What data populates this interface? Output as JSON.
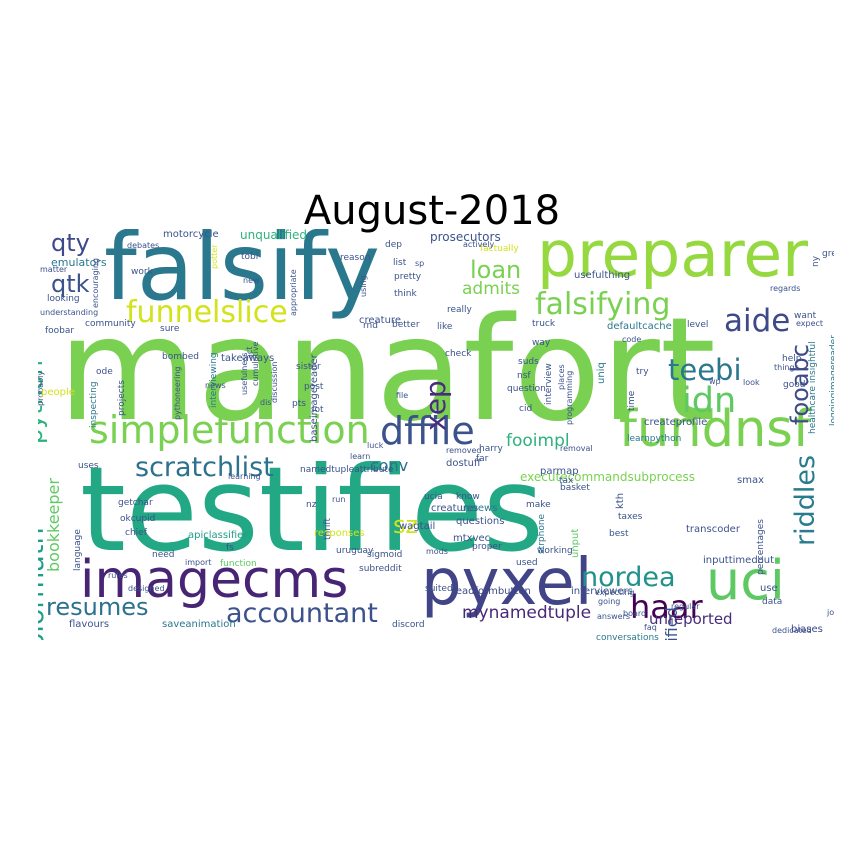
{
  "title": "August-2018",
  "colors": {
    "background": "#ffffff",
    "title": "#000000"
  },
  "words": [
    {
      "text": "manafort",
      "color": "#7ad151"
    },
    {
      "text": "testifies",
      "color": "#22a884"
    },
    {
      "text": "falsify",
      "color": "#2a788e"
    },
    {
      "text": "preparer",
      "color": "#95d840"
    },
    {
      "text": "imagecms",
      "color": "#482475"
    },
    {
      "text": "pyxel",
      "color": "#414487"
    },
    {
      "text": "uci",
      "color": "#5ec962"
    },
    {
      "text": "fundnsf",
      "color": "#7ad151"
    },
    {
      "text": "simplefunction",
      "color": "#7ad151"
    },
    {
      "text": "dffile",
      "color": "#3b528b"
    },
    {
      "text": "funnelslice",
      "color": "#d2e21b"
    },
    {
      "text": "falsifying",
      "color": "#7ad151"
    },
    {
      "text": "scratchlist",
      "color": "#2c728e"
    },
    {
      "text": "accountant",
      "color": "#3b528b"
    },
    {
      "text": "nordea",
      "color": "#21918c"
    },
    {
      "text": "idn",
      "color": "#5ec962"
    },
    {
      "text": "aide",
      "color": "#3e4989"
    },
    {
      "text": "haar",
      "color": "#440154"
    },
    {
      "text": "riddles",
      "color": "#287c8e"
    },
    {
      "text": "colormath",
      "color": "#1f9e89"
    },
    {
      "text": "resumes",
      "color": "#2c728e"
    },
    {
      "text": "teebi",
      "color": "#2a788e"
    },
    {
      "text": "xep",
      "color": "#472d7b"
    },
    {
      "text": "python",
      "color": "#2db27d"
    },
    {
      "text": "qtk",
      "color": "#3b528b"
    },
    {
      "text": "qty",
      "color": "#3e4989"
    },
    {
      "text": "loan",
      "color": "#7ad151"
    },
    {
      "text": "fooabc",
      "color": "#3e4989"
    },
    {
      "text": "sz",
      "color": "#d2e21b"
    },
    {
      "text": "mynamedtuple",
      "color": "#482878"
    },
    {
      "text": "bookkeeper",
      "color": "#5ec962"
    },
    {
      "text": "admits",
      "color": "#7ad151"
    },
    {
      "text": "conv",
      "color": "#2c728e"
    },
    {
      "text": "fooimpl",
      "color": "#2db27d"
    },
    {
      "text": "falsified",
      "color": "#3b528b"
    },
    {
      "text": "unreported",
      "color": "#472d7b"
    },
    {
      "text": "unqualified",
      "color": "#2db27d"
    },
    {
      "text": "prosecutors",
      "color": "#3b528b"
    },
    {
      "text": "motorcycle",
      "color": "#3b528b"
    },
    {
      "text": "emulators",
      "color": "#2a788e"
    },
    {
      "text": "flavours",
      "color": "#3b528b"
    },
    {
      "text": "saveanimation",
      "color": "#2a788e"
    },
    {
      "text": "apiclassifier",
      "color": "#1f9e89"
    },
    {
      "text": "transcoder",
      "color": "#3b528b"
    },
    {
      "text": "executecommandsubprocess",
      "color": "#7ad151"
    },
    {
      "text": "readformbutton",
      "color": "#3e4989"
    },
    {
      "text": "interviewers",
      "color": "#3b528b"
    },
    {
      "text": "inputtimedout",
      "color": "#3b528b"
    },
    {
      "text": "conversations",
      "color": "#2a788e"
    },
    {
      "text": "biases",
      "color": "#3e4989"
    },
    {
      "text": "defaultcache",
      "color": "#2a788e"
    },
    {
      "text": "createprofile",
      "color": "#3b528b"
    },
    {
      "text": "learnpython",
      "color": "#2a788e"
    },
    {
      "text": "usefulthing",
      "color": "#3b528b"
    },
    {
      "text": "uniq",
      "color": "#2a788e"
    },
    {
      "text": "creature",
      "color": "#3b528b"
    },
    {
      "text": "creatures",
      "color": "#3b528b"
    },
    {
      "text": "takeaways",
      "color": "#3b528b"
    },
    {
      "text": "baseimagereader",
      "color": "#3b528b"
    },
    {
      "text": "interviewing",
      "color": "#2a788e"
    },
    {
      "text": "inspecting",
      "color": "#2a788e"
    },
    {
      "text": "projects",
      "color": "#3b528b"
    },
    {
      "text": "namedtupleattribute",
      "color": "#3b528b"
    },
    {
      "text": "dostuff",
      "color": "#3b528b"
    },
    {
      "text": "parmap",
      "color": "#3b528b"
    },
    {
      "text": "wagtail",
      "color": "#3b528b"
    },
    {
      "text": "mtxvec",
      "color": "#3b528b"
    },
    {
      "text": "usnews",
      "color": "#2a788e"
    },
    {
      "text": "questions",
      "color": "#3b528b"
    },
    {
      "text": "strphone",
      "color": "#2a788e"
    },
    {
      "text": "unput",
      "color": "#5ec962"
    },
    {
      "text": "sigmoid",
      "color": "#3b528b"
    },
    {
      "text": "subreddit",
      "color": "#3b528b"
    },
    {
      "text": "discord",
      "color": "#3b528b"
    },
    {
      "text": "uruguay",
      "color": "#3b528b"
    },
    {
      "text": "responses",
      "color": "#d2e21b"
    },
    {
      "text": "function",
      "color": "#5ec962"
    },
    {
      "text": "getchar",
      "color": "#3b528b"
    },
    {
      "text": "okcupid",
      "color": "#3b528b"
    },
    {
      "text": "chief",
      "color": "#3b528b"
    },
    {
      "text": "language",
      "color": "#3b528b"
    },
    {
      "text": "smax",
      "color": "#3b528b"
    },
    {
      "text": "percentages",
      "color": "#3b528b"
    },
    {
      "text": "loggingimagereader",
      "color": "#2a788e"
    },
    {
      "text": "healthcare insightful",
      "color": "#2a788e"
    },
    {
      "text": "sister",
      "color": "#3b528b"
    },
    {
      "text": "post",
      "color": "#3b528b"
    },
    {
      "text": "pts",
      "color": "#3b528b"
    },
    {
      "text": "lot",
      "color": "#3b528b"
    },
    {
      "text": "cid",
      "color": "#3b528b"
    },
    {
      "text": "question",
      "color": "#3b528b"
    },
    {
      "text": "nsf",
      "color": "#3b528b"
    },
    {
      "text": "suds",
      "color": "#3b528b"
    },
    {
      "text": "check",
      "color": "#3b528b"
    },
    {
      "text": "truck",
      "color": "#3b528b"
    },
    {
      "text": "like",
      "color": "#3b528b"
    },
    {
      "text": "rnd",
      "color": "#3b528b"
    },
    {
      "text": "better",
      "color": "#3b528b"
    },
    {
      "text": "really",
      "color": "#3b528b"
    },
    {
      "text": "way",
      "color": "#3b528b"
    },
    {
      "text": "think",
      "color": "#3b528b"
    },
    {
      "text": "pretty",
      "color": "#3b528b"
    },
    {
      "text": "list",
      "color": "#3b528b"
    },
    {
      "text": "reason",
      "color": "#3b528b"
    },
    {
      "text": "dep",
      "color": "#3b528b"
    },
    {
      "text": "factually",
      "color": "#d2e21b"
    },
    {
      "text": "actively",
      "color": "#3b528b"
    },
    {
      "text": "potter",
      "color": "#d2e21b"
    },
    {
      "text": "tobi",
      "color": "#3b528b"
    },
    {
      "text": "work",
      "color": "#3b528b"
    },
    {
      "text": "debates",
      "color": "#3b528b"
    },
    {
      "text": "matter",
      "color": "#3b528b"
    },
    {
      "text": "looking",
      "color": "#3b528b"
    },
    {
      "text": "understanding",
      "color": "#3b528b"
    },
    {
      "text": "community",
      "color": "#3b528b"
    },
    {
      "text": "sure",
      "color": "#3b528b"
    },
    {
      "text": "encouraging",
      "color": "#3b528b"
    },
    {
      "text": "foobar",
      "color": "#3b528b"
    },
    {
      "text": "ode",
      "color": "#3b528b"
    },
    {
      "text": "probably",
      "color": "#3b528b"
    },
    {
      "text": "people",
      "color": "#d2e21b"
    },
    {
      "text": "news",
      "color": "#3b528b"
    },
    {
      "text": "bombed",
      "color": "#3b528b"
    },
    {
      "text": "pythoneering",
      "color": "#3b528b"
    },
    {
      "text": "discussion",
      "color": "#3b528b"
    },
    {
      "text": "usefulness",
      "color": "#3b528b"
    },
    {
      "text": "cumulative",
      "color": "#3b528b"
    },
    {
      "text": "appropriate",
      "color": "#3b528b"
    },
    {
      "text": "new",
      "color": "#3b528b"
    },
    {
      "text": "act",
      "color": "#3b528b"
    },
    {
      "text": "using",
      "color": "#3b528b"
    },
    {
      "text": "sp",
      "color": "#3b528b"
    },
    {
      "text": "level",
      "color": "#3b528b"
    },
    {
      "text": "code",
      "color": "#3b528b"
    },
    {
      "text": "help",
      "color": "#3b528b"
    },
    {
      "text": "try",
      "color": "#3b528b"
    },
    {
      "text": "good",
      "color": "#3b528b"
    },
    {
      "text": "look",
      "color": "#3b528b"
    },
    {
      "text": "want",
      "color": "#3b528b"
    },
    {
      "text": "expect",
      "color": "#3b528b"
    },
    {
      "text": "great",
      "color": "#3b528b"
    },
    {
      "text": "regards",
      "color": "#3b528b"
    },
    {
      "text": "ny",
      "color": "#3b528b"
    },
    {
      "text": "time",
      "color": "#3b528b"
    },
    {
      "text": "programming",
      "color": "#3b528b"
    },
    {
      "text": "places",
      "color": "#3b528b"
    },
    {
      "text": "interview",
      "color": "#3b528b"
    },
    {
      "text": "file",
      "color": "#3b528b"
    },
    {
      "text": "things",
      "color": "#3b528b"
    },
    {
      "text": "wp",
      "color": "#3b528b"
    },
    {
      "text": "removal",
      "color": "#3b528b"
    },
    {
      "text": "removed",
      "color": "#3b528b"
    },
    {
      "text": "luck",
      "color": "#3b528b"
    },
    {
      "text": "learn",
      "color": "#3b528b"
    },
    {
      "text": "basket",
      "color": "#3b528b"
    },
    {
      "text": "harry",
      "color": "#3b528b"
    },
    {
      "text": "far",
      "color": "#3b528b"
    },
    {
      "text": "tax",
      "color": "#3b528b"
    },
    {
      "text": "kth",
      "color": "#3b528b"
    },
    {
      "text": "taxes",
      "color": "#3b528b"
    },
    {
      "text": "best",
      "color": "#3b528b"
    },
    {
      "text": "expecting",
      "color": "#3b528b"
    },
    {
      "text": "proper",
      "color": "#3b528b"
    },
    {
      "text": "make",
      "color": "#3b528b"
    },
    {
      "text": "know",
      "color": "#3b528b"
    },
    {
      "text": "ucia",
      "color": "#3b528b"
    },
    {
      "text": "run",
      "color": "#3b528b"
    },
    {
      "text": "thrift",
      "color": "#3b528b"
    },
    {
      "text": "nz",
      "color": "#3b528b"
    },
    {
      "text": "fs",
      "color": "#3b528b"
    },
    {
      "text": "import",
      "color": "#3b528b"
    },
    {
      "text": "need",
      "color": "#3b528b"
    },
    {
      "text": "uses",
      "color": "#3b528b"
    },
    {
      "text": "rules",
      "color": "#3b528b"
    },
    {
      "text": "designed",
      "color": "#3b528b"
    },
    {
      "text": "working",
      "color": "#3b528b"
    },
    {
      "text": "used",
      "color": "#3b528b"
    },
    {
      "text": "going",
      "color": "#3b528b"
    },
    {
      "text": "answers",
      "color": "#3b528b"
    },
    {
      "text": "board",
      "color": "#3b528b"
    },
    {
      "text": "faq",
      "color": "#3b528b"
    },
    {
      "text": "regular",
      "color": "#3b528b"
    },
    {
      "text": "use",
      "color": "#3b528b"
    },
    {
      "text": "data",
      "color": "#3b528b"
    },
    {
      "text": "job",
      "color": "#3b528b"
    },
    {
      "text": "dedicated",
      "color": "#3b528b"
    },
    {
      "text": "learning",
      "color": "#3b528b"
    },
    {
      "text": "suited",
      "color": "#3b528b"
    },
    {
      "text": "mods",
      "color": "#3b528b"
    },
    {
      "text": "dis",
      "color": "#3b528b"
    }
  ]
}
